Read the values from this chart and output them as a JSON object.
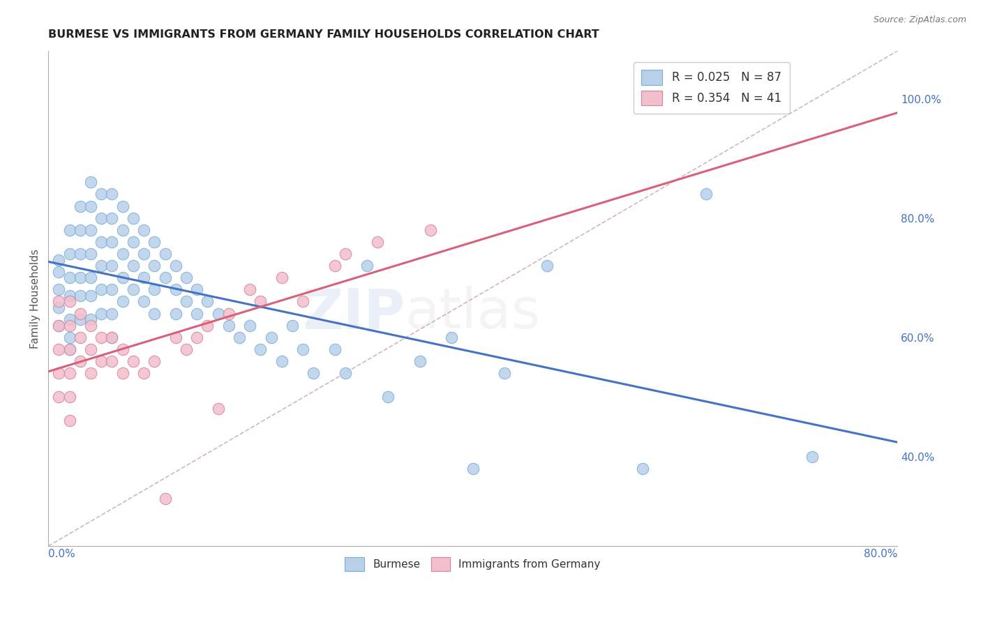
{
  "title": "BURMESE VS IMMIGRANTS FROM GERMANY FAMILY HOUSEHOLDS CORRELATION CHART",
  "source": "Source: ZipAtlas.com",
  "ylabel": "Family Households",
  "right_yticks": [
    40.0,
    60.0,
    80.0,
    100.0
  ],
  "xmin": 0.0,
  "xmax": 0.8,
  "ymin": 0.25,
  "ymax": 1.08,
  "legend_blue_label": "R = 0.025   N = 87",
  "legend_pink_label": "R = 0.354   N = 41",
  "blue_color": "#b8d0ea",
  "pink_color": "#f2bfcc",
  "blue_edge": "#7aafd4",
  "pink_edge": "#d9829a",
  "trend_blue_color": "#4472c4",
  "trend_pink_color": "#d9607a",
  "diag_color": "#c8a0b8",
  "blue_x": [
    0.01,
    0.01,
    0.01,
    0.01,
    0.01,
    0.02,
    0.02,
    0.02,
    0.02,
    0.02,
    0.02,
    0.02,
    0.03,
    0.03,
    0.03,
    0.03,
    0.03,
    0.03,
    0.04,
    0.04,
    0.04,
    0.04,
    0.04,
    0.04,
    0.04,
    0.05,
    0.05,
    0.05,
    0.05,
    0.05,
    0.05,
    0.06,
    0.06,
    0.06,
    0.06,
    0.06,
    0.06,
    0.06,
    0.07,
    0.07,
    0.07,
    0.07,
    0.07,
    0.08,
    0.08,
    0.08,
    0.08,
    0.09,
    0.09,
    0.09,
    0.09,
    0.1,
    0.1,
    0.1,
    0.1,
    0.11,
    0.11,
    0.12,
    0.12,
    0.12,
    0.13,
    0.13,
    0.14,
    0.14,
    0.15,
    0.16,
    0.17,
    0.18,
    0.19,
    0.2,
    0.21,
    0.22,
    0.23,
    0.24,
    0.25,
    0.27,
    0.28,
    0.3,
    0.32,
    0.35,
    0.38,
    0.4,
    0.43,
    0.47,
    0.56,
    0.62,
    0.72
  ],
  "blue_y": [
    0.73,
    0.71,
    0.68,
    0.65,
    0.62,
    0.78,
    0.74,
    0.7,
    0.67,
    0.63,
    0.6,
    0.58,
    0.82,
    0.78,
    0.74,
    0.7,
    0.67,
    0.63,
    0.86,
    0.82,
    0.78,
    0.74,
    0.7,
    0.67,
    0.63,
    0.84,
    0.8,
    0.76,
    0.72,
    0.68,
    0.64,
    0.84,
    0.8,
    0.76,
    0.72,
    0.68,
    0.64,
    0.6,
    0.82,
    0.78,
    0.74,
    0.7,
    0.66,
    0.8,
    0.76,
    0.72,
    0.68,
    0.78,
    0.74,
    0.7,
    0.66,
    0.76,
    0.72,
    0.68,
    0.64,
    0.74,
    0.7,
    0.72,
    0.68,
    0.64,
    0.7,
    0.66,
    0.68,
    0.64,
    0.66,
    0.64,
    0.62,
    0.6,
    0.62,
    0.58,
    0.6,
    0.56,
    0.62,
    0.58,
    0.54,
    0.58,
    0.54,
    0.72,
    0.5,
    0.56,
    0.6,
    0.38,
    0.54,
    0.72,
    0.38,
    0.84,
    0.4
  ],
  "pink_x": [
    0.01,
    0.01,
    0.01,
    0.01,
    0.01,
    0.02,
    0.02,
    0.02,
    0.02,
    0.02,
    0.02,
    0.03,
    0.03,
    0.03,
    0.04,
    0.04,
    0.04,
    0.05,
    0.05,
    0.06,
    0.06,
    0.07,
    0.07,
    0.08,
    0.09,
    0.1,
    0.12,
    0.13,
    0.14,
    0.15,
    0.17,
    0.19,
    0.2,
    0.22,
    0.24,
    0.27,
    0.28,
    0.31,
    0.36,
    0.16,
    0.11
  ],
  "pink_y": [
    0.66,
    0.62,
    0.58,
    0.54,
    0.5,
    0.66,
    0.62,
    0.58,
    0.54,
    0.5,
    0.46,
    0.64,
    0.6,
    0.56,
    0.62,
    0.58,
    0.54,
    0.6,
    0.56,
    0.6,
    0.56,
    0.58,
    0.54,
    0.56,
    0.54,
    0.56,
    0.6,
    0.58,
    0.6,
    0.62,
    0.64,
    0.68,
    0.66,
    0.7,
    0.66,
    0.72,
    0.74,
    0.76,
    0.78,
    0.48,
    0.33
  ]
}
